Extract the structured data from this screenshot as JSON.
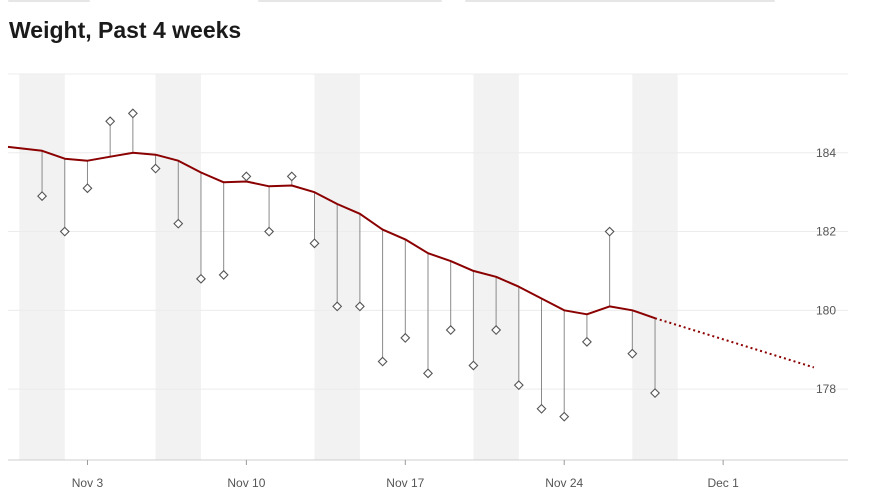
{
  "page": {
    "title": "Weight, Past 4 weeks"
  },
  "colors": {
    "trend": "#8b0000",
    "marker": "#555555",
    "stem": "#8a8a8a",
    "weekend_band": "#f2f2f2",
    "grid": "#ececec"
  },
  "chart_data": {
    "type": "line",
    "title": "Weight, Past 4 weeks",
    "xlabel": "",
    "ylabel": "",
    "x_range": [
      "2023-10-31",
      "2023-12-07"
    ],
    "ylim": [
      176.2,
      186.0
    ],
    "x_ticks": [
      {
        "date": "2023-11-03",
        "label": "Nov 3"
      },
      {
        "date": "2023-11-10",
        "label": "Nov 10"
      },
      {
        "date": "2023-11-17",
        "label": "Nov 17"
      },
      {
        "date": "2023-11-24",
        "label": "Nov 24"
      },
      {
        "date": "2023-12-01",
        "label": "Dec 1"
      }
    ],
    "y_ticks": [
      {
        "value": 178,
        "label": "178"
      },
      {
        "value": 180,
        "label": "180"
      },
      {
        "value": 182,
        "label": "182"
      },
      {
        "value": 184,
        "label": "184"
      }
    ],
    "weekend_bands": [
      [
        "2023-10-31",
        "2023-11-02"
      ],
      [
        "2023-11-06",
        "2023-11-08"
      ],
      [
        "2023-11-13",
        "2023-11-15"
      ],
      [
        "2023-11-20",
        "2023-11-22"
      ],
      [
        "2023-11-27",
        "2023-11-29"
      ]
    ],
    "grid": true,
    "legend": "none",
    "series": [
      {
        "kind": "measurements",
        "points": [
          {
            "x": "2023-11-01",
            "y": 182.9
          },
          {
            "x": "2023-11-02",
            "y": 182.0
          },
          {
            "x": "2023-11-03",
            "y": 183.1
          },
          {
            "x": "2023-11-04",
            "y": 184.8
          },
          {
            "x": "2023-11-05",
            "y": 185.0
          },
          {
            "x": "2023-11-06",
            "y": 183.6
          },
          {
            "x": "2023-11-07",
            "y": 182.2
          },
          {
            "x": "2023-11-08",
            "y": 180.8
          },
          {
            "x": "2023-11-09",
            "y": 180.9
          },
          {
            "x": "2023-11-10",
            "y": 183.4
          },
          {
            "x": "2023-11-11",
            "y": 182.0
          },
          {
            "x": "2023-11-12",
            "y": 183.4
          },
          {
            "x": "2023-11-13",
            "y": 181.7
          },
          {
            "x": "2023-11-14",
            "y": 180.1
          },
          {
            "x": "2023-11-15",
            "y": 180.1
          },
          {
            "x": "2023-11-16",
            "y": 178.7
          },
          {
            "x": "2023-11-17",
            "y": 179.3
          },
          {
            "x": "2023-11-18",
            "y": 178.4
          },
          {
            "x": "2023-11-19",
            "y": 179.5
          },
          {
            "x": "2023-11-20",
            "y": 178.6
          },
          {
            "x": "2023-11-21",
            "y": 179.5
          },
          {
            "x": "2023-11-22",
            "y": 178.1
          },
          {
            "x": "2023-11-23",
            "y": 177.5
          },
          {
            "x": "2023-11-24",
            "y": 177.3
          },
          {
            "x": "2023-11-25",
            "y": 179.2
          },
          {
            "x": "2023-11-26",
            "y": 182.0
          },
          {
            "x": "2023-11-27",
            "y": 178.9
          },
          {
            "x": "2023-11-28",
            "y": 177.9
          }
        ]
      },
      {
        "kind": "trend",
        "points": [
          {
            "x": "2023-10-31",
            "y": 184.15
          },
          {
            "x": "2023-11-01",
            "y": 184.05
          },
          {
            "x": "2023-11-02",
            "y": 183.85
          },
          {
            "x": "2023-11-03",
            "y": 183.8
          },
          {
            "x": "2023-11-04",
            "y": 183.9
          },
          {
            "x": "2023-11-05",
            "y": 184.0
          },
          {
            "x": "2023-11-06",
            "y": 183.95
          },
          {
            "x": "2023-11-07",
            "y": 183.8
          },
          {
            "x": "2023-11-08",
            "y": 183.5
          },
          {
            "x": "2023-11-09",
            "y": 183.25
          },
          {
            "x": "2023-11-10",
            "y": 183.27
          },
          {
            "x": "2023-11-11",
            "y": 183.15
          },
          {
            "x": "2023-11-12",
            "y": 183.17
          },
          {
            "x": "2023-11-13",
            "y": 183.0
          },
          {
            "x": "2023-11-14",
            "y": 182.7
          },
          {
            "x": "2023-11-15",
            "y": 182.45
          },
          {
            "x": "2023-11-16",
            "y": 182.05
          },
          {
            "x": "2023-11-17",
            "y": 181.8
          },
          {
            "x": "2023-11-18",
            "y": 181.45
          },
          {
            "x": "2023-11-19",
            "y": 181.25
          },
          {
            "x": "2023-11-20",
            "y": 181.0
          },
          {
            "x": "2023-11-21",
            "y": 180.85
          },
          {
            "x": "2023-11-22",
            "y": 180.6
          },
          {
            "x": "2023-11-23",
            "y": 180.3
          },
          {
            "x": "2023-11-24",
            "y": 180.0
          },
          {
            "x": "2023-11-25",
            "y": 179.9
          },
          {
            "x": "2023-11-26",
            "y": 180.1
          },
          {
            "x": "2023-11-27",
            "y": 180.0
          },
          {
            "x": "2023-11-28",
            "y": 179.8
          }
        ]
      },
      {
        "kind": "projection",
        "points": [
          {
            "x": "2023-11-28",
            "y": 179.8
          },
          {
            "x": "2023-12-05",
            "y": 178.55
          }
        ]
      }
    ]
  }
}
